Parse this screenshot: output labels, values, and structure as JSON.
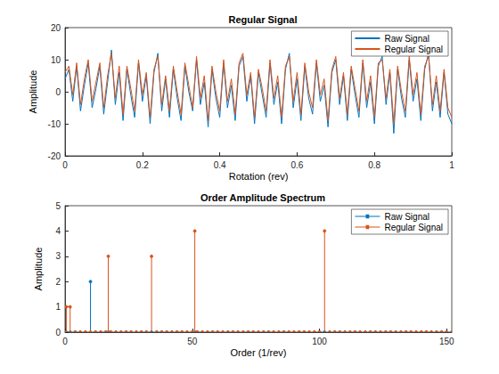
{
  "chart_data": [
    {
      "type": "line",
      "title": "Regular Signal",
      "xlabel": "Rotation (rev)",
      "ylabel": "Amplitude",
      "x": [
        0,
        0.01,
        0.02,
        0.03,
        0.04,
        0.05,
        0.06,
        0.07,
        0.08,
        0.09,
        0.1,
        0.11,
        0.12,
        0.13,
        0.14,
        0.15,
        0.16,
        0.17,
        0.18,
        0.19,
        0.2,
        0.21,
        0.22,
        0.23,
        0.24,
        0.25,
        0.26,
        0.27,
        0.28,
        0.29,
        0.3,
        0.31,
        0.32,
        0.33,
        0.34,
        0.35,
        0.36,
        0.37,
        0.38,
        0.39,
        0.4,
        0.41,
        0.42,
        0.43,
        0.44,
        0.45,
        0.46,
        0.47,
        0.48,
        0.49,
        0.5,
        0.51,
        0.52,
        0.53,
        0.54,
        0.55,
        0.56,
        0.57,
        0.58,
        0.59,
        0.6,
        0.61,
        0.62,
        0.63,
        0.64,
        0.65,
        0.66,
        0.67,
        0.68,
        0.69,
        0.7,
        0.71,
        0.72,
        0.73,
        0.74,
        0.75,
        0.76,
        0.77,
        0.78,
        0.79,
        0.8,
        0.81,
        0.82,
        0.83,
        0.84,
        0.85,
        0.86,
        0.87,
        0.88,
        0.89,
        0.9,
        0.91,
        0.92,
        0.93,
        0.94,
        0.95,
        0.96,
        0.97,
        0.98,
        0.99,
        1
      ],
      "series": [
        {
          "name": "Raw Signal",
          "color": "#0072bd",
          "values": [
            4,
            7,
            -3,
            8,
            -6,
            2,
            9,
            -5,
            1,
            8,
            -7,
            3,
            13,
            -4,
            6,
            -9,
            7,
            -1,
            -8,
            9,
            -3,
            5,
            -10,
            6,
            12,
            -6,
            4,
            -8,
            7,
            -2,
            -9,
            8,
            0,
            -6,
            10,
            -4,
            3,
            -11,
            7,
            -2,
            -8,
            9,
            -5,
            2,
            -9,
            8,
            11,
            -3,
            5,
            -10,
            6,
            -1,
            -8,
            9,
            -4,
            3,
            -10,
            7,
            12,
            -5,
            4,
            -9,
            8,
            -2,
            -7,
            9,
            -3,
            2,
            -11,
            6,
            10,
            -4,
            5,
            -9,
            7,
            -1,
            -8,
            9,
            -5,
            3,
            -10,
            8,
            11,
            -4,
            6,
            -13,
            7,
            -2,
            -8,
            10,
            -3,
            4,
            -9,
            7,
            12,
            -6,
            3,
            -8,
            6,
            -7,
            -10
          ]
        },
        {
          "name": "Regular Signal",
          "color": "#d95319",
          "values": [
            6,
            8,
            -1,
            9,
            -4,
            4,
            10,
            -3,
            3,
            9,
            -5,
            5,
            12,
            -2,
            8,
            -7,
            8,
            1,
            -6,
            10,
            -1,
            6,
            -8,
            7,
            11,
            -4,
            5,
            -6,
            8,
            0,
            -7,
            9,
            2,
            -5,
            11,
            -2,
            5,
            -9,
            8,
            0,
            -6,
            10,
            -3,
            4,
            -7,
            9,
            12,
            -1,
            6,
            -8,
            7,
            1,
            -6,
            10,
            -2,
            5,
            -8,
            8,
            11,
            -3,
            6,
            -7,
            9,
            0,
            -5,
            10,
            -1,
            4,
            -9,
            7,
            11,
            -2,
            6,
            -7,
            8,
            1,
            -6,
            10,
            -3,
            5,
            -8,
            9,
            10,
            -2,
            7,
            -10,
            8,
            0,
            -6,
            11,
            -1,
            6,
            -7,
            8,
            11,
            -4,
            5,
            -6,
            7,
            -5,
            -8
          ]
        }
      ],
      "xlim": [
        0,
        1
      ],
      "ylim": [
        -20,
        20
      ],
      "xticks": [
        0,
        0.2,
        0.4,
        0.6,
        0.8,
        1
      ],
      "yticks": [
        -20,
        -10,
        0,
        10,
        20
      ],
      "grid": false,
      "legend": "northeast"
    },
    {
      "type": "stem",
      "title": "Order Amplitude Spectrum",
      "xlabel": "Order (1/rev)",
      "ylabel": "Amplitude",
      "x": [
        0,
        0.5,
        2,
        4,
        6,
        8,
        10,
        12,
        14,
        16,
        17,
        18,
        20,
        22,
        24,
        26,
        28,
        30,
        32,
        34,
        36,
        38,
        40,
        42,
        44,
        46,
        48,
        50,
        51,
        52,
        54,
        56,
        58,
        60,
        62,
        64,
        66,
        68,
        70,
        72,
        74,
        76,
        78,
        80,
        82,
        84,
        86,
        88,
        90,
        92,
        94,
        96,
        98,
        100,
        102,
        104,
        106,
        108,
        110,
        112,
        114,
        116,
        118,
        120,
        122,
        124,
        126,
        128,
        130,
        132,
        134,
        136,
        138,
        140,
        142,
        144,
        146,
        148,
        150,
        152
      ],
      "series": [
        {
          "name": "Raw Signal",
          "color": "#0072bd",
          "marker": "circle",
          "values": [
            0,
            0,
            0,
            0,
            0,
            0,
            2,
            0,
            0,
            0,
            0,
            0,
            0,
            0,
            0,
            0,
            0,
            0,
            0,
            0,
            0,
            0,
            0,
            0,
            0,
            0,
            0,
            0,
            0,
            0,
            0,
            0,
            0,
            0,
            0,
            0,
            0,
            0,
            0,
            0,
            0,
            0,
            0,
            0,
            0,
            0,
            0,
            0,
            0,
            0,
            0,
            0,
            0,
            0,
            0,
            0,
            0,
            0,
            0,
            0,
            0,
            0,
            0,
            0,
            0,
            0,
            0,
            0,
            0,
            0,
            0,
            0,
            0,
            0,
            0,
            0,
            0,
            0,
            0,
            0
          ]
        },
        {
          "name": "Regular Signal",
          "color": "#d95319",
          "marker": "circle",
          "values": [
            0,
            1,
            1,
            0,
            0,
            0,
            0,
            0,
            0,
            0,
            3,
            0,
            0,
            0,
            0,
            0,
            0,
            0,
            0,
            3,
            0,
            0,
            0,
            0,
            0,
            0,
            0,
            0,
            4,
            0,
            0,
            0,
            0,
            0,
            0,
            0,
            0,
            0,
            0,
            0,
            0,
            0,
            0,
            0,
            0,
            0,
            0,
            0,
            0,
            0,
            0,
            0,
            0,
            0,
            4,
            0,
            0,
            0,
            0,
            0,
            0,
            0,
            0,
            0,
            0,
            0,
            0,
            0,
            0,
            0,
            0,
            0,
            0,
            0,
            0,
            0,
            0,
            0,
            0,
            0
          ]
        }
      ],
      "xlim": [
        0,
        152
      ],
      "ylim": [
        0,
        5
      ],
      "xticks": [
        0,
        50,
        100,
        150
      ],
      "yticks": [
        0,
        1,
        2,
        3,
        4,
        5
      ],
      "grid": false,
      "legend": "northeast"
    }
  ]
}
